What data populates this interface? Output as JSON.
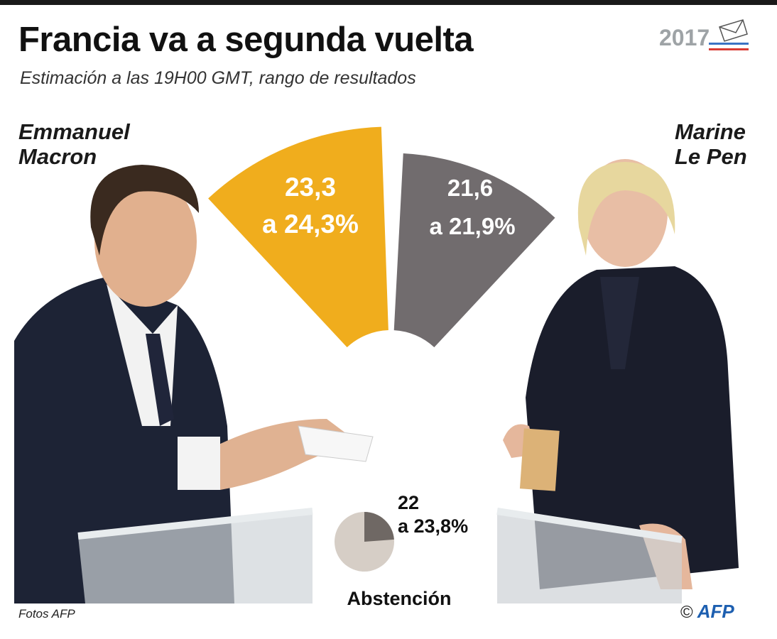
{
  "header": {
    "title": "Francia va a segunda vuelta",
    "subtitle": "Estimación a las 19H00 GMT, rango de resultados",
    "logo_year": "2017"
  },
  "candidates": [
    {
      "name_line1": "Emmanuel",
      "name_line2": "Macron"
    },
    {
      "name_line1": "Marine",
      "name_line2": "Le Pen"
    }
  ],
  "chart_data": {
    "type": "pie",
    "series": [
      {
        "name": "Emmanuel Macron",
        "range": [
          23.3,
          24.3
        ],
        "label_line1": "23,3",
        "label_line2": "a 24,3%",
        "color": "#f0ad1d"
      },
      {
        "name": "Marine Le Pen",
        "range": [
          21.6,
          21.9
        ],
        "label_line1": "21,6",
        "label_line2": "a 21,9%",
        "color": "#716c6e"
      }
    ],
    "abstention": {
      "name": "Abstención",
      "range": [
        22,
        23.8
      ],
      "label_line1": "22",
      "label_line2": "a 23,8%",
      "color": "#6f6864",
      "rest_color": "#d6cec6"
    }
  },
  "footer": {
    "credit": "Fotos AFP",
    "copyright": "©",
    "agency": "AFP"
  }
}
